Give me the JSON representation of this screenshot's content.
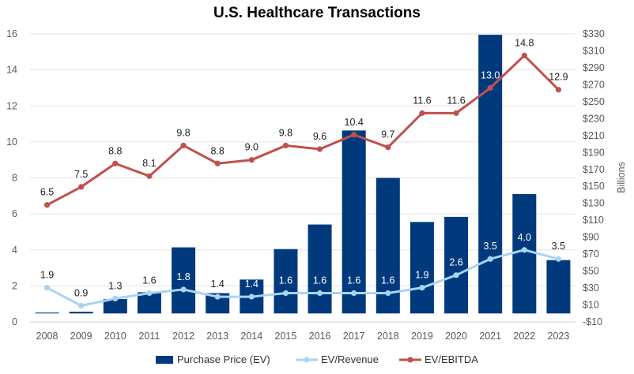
{
  "chart_data": {
    "type": "bar",
    "title": "U.S. Healthcare Transactions",
    "xlabel": "",
    "ylabel": "",
    "y2label": "Billions",
    "categories": [
      "2008",
      "2009",
      "2010",
      "2011",
      "2012",
      "2013",
      "2014",
      "2015",
      "2016",
      "2017",
      "2018",
      "2019",
      "2020",
      "2021",
      "2022",
      "2023"
    ],
    "ylim": [
      0,
      16
    ],
    "yticks": [
      "0",
      "2",
      "4",
      "6",
      "8",
      "10",
      "12",
      "14",
      "16"
    ],
    "y2lim": [
      -10,
      330
    ],
    "y2ticks": [
      "-$10",
      "$10",
      "$30",
      "$50",
      "$70",
      "$90",
      "$110",
      "$130",
      "$150",
      "$170",
      "$190",
      "$210",
      "$230",
      "$250",
      "$270",
      "$290",
      "$310",
      "$330"
    ],
    "grid": true,
    "legend_position": "bottom",
    "series": [
      {
        "name": "Purchase Price (EV)",
        "kind": "bar",
        "axis": "right",
        "color": "#003a7d",
        "values": [
          1,
          2,
          17,
          25,
          78,
          24,
          40,
          76,
          105,
          216,
          160,
          108,
          114,
          329,
          141,
          63
        ]
      },
      {
        "name": "EV/Revenue",
        "kind": "line",
        "axis": "left",
        "color": "#a9d3f5",
        "values": [
          1.9,
          0.9,
          1.3,
          1.6,
          1.8,
          1.4,
          1.4,
          1.6,
          1.6,
          1.6,
          1.6,
          1.9,
          2.6,
          3.5,
          4.0,
          3.5
        ],
        "labels": [
          "1.9",
          "0.9",
          "1.3",
          "1.6",
          "1.8",
          "1.4",
          "1.4",
          "1.6",
          "1.6",
          "1.6",
          "1.6",
          "1.9",
          "2.6",
          "3.5",
          "4.0",
          "3.5"
        ]
      },
      {
        "name": "EV/EBITDA",
        "kind": "line",
        "axis": "left",
        "color": "#c0504d",
        "values": [
          6.5,
          7.5,
          8.8,
          8.1,
          9.8,
          8.8,
          9.0,
          9.8,
          9.6,
          10.4,
          9.7,
          11.6,
          11.6,
          13.0,
          14.8,
          12.9
        ],
        "labels": [
          "6.5",
          "7.5",
          "8.8",
          "8.1",
          "9.8",
          "8.8",
          "9.0",
          "9.8",
          "9.6",
          "10.4",
          "9.7",
          "11.6",
          "11.6",
          "13.0",
          "14.8",
          "12.9"
        ]
      }
    ]
  }
}
